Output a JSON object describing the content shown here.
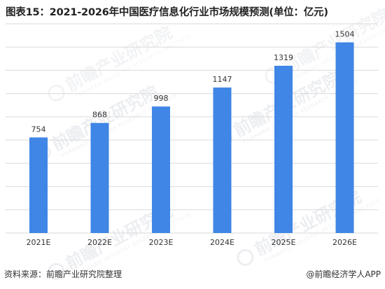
{
  "title": "图表15：2021-2026年中国医疗信息化行业市场规模预测(单位：亿元)",
  "source": "资料来源：前瞻产业研究院整理",
  "credit": "@前瞻经济学人APP",
  "watermark": {
    "text": "前瞻产业研究院",
    "subtext": "FORWARD INDUSTRY RESEARCH INSTITUTE"
  },
  "colors": {
    "bar": "#3f86e6",
    "grid": "#d9d9d9",
    "label": "#333333"
  },
  "chart_data": {
    "type": "bar",
    "categories": [
      "2021E",
      "2022E",
      "2023E",
      "2024E",
      "2025E",
      "2026E"
    ],
    "values": [
      754,
      868,
      998,
      1147,
      1319,
      1504
    ],
    "title": "图表15：2021-2026年中国医疗信息化行业市场规模预测(单位：亿元)",
    "xlabel": "",
    "ylabel": "",
    "ylim": [
      0,
      1650
    ],
    "grid": true,
    "legend": "none",
    "data_labels": true
  }
}
